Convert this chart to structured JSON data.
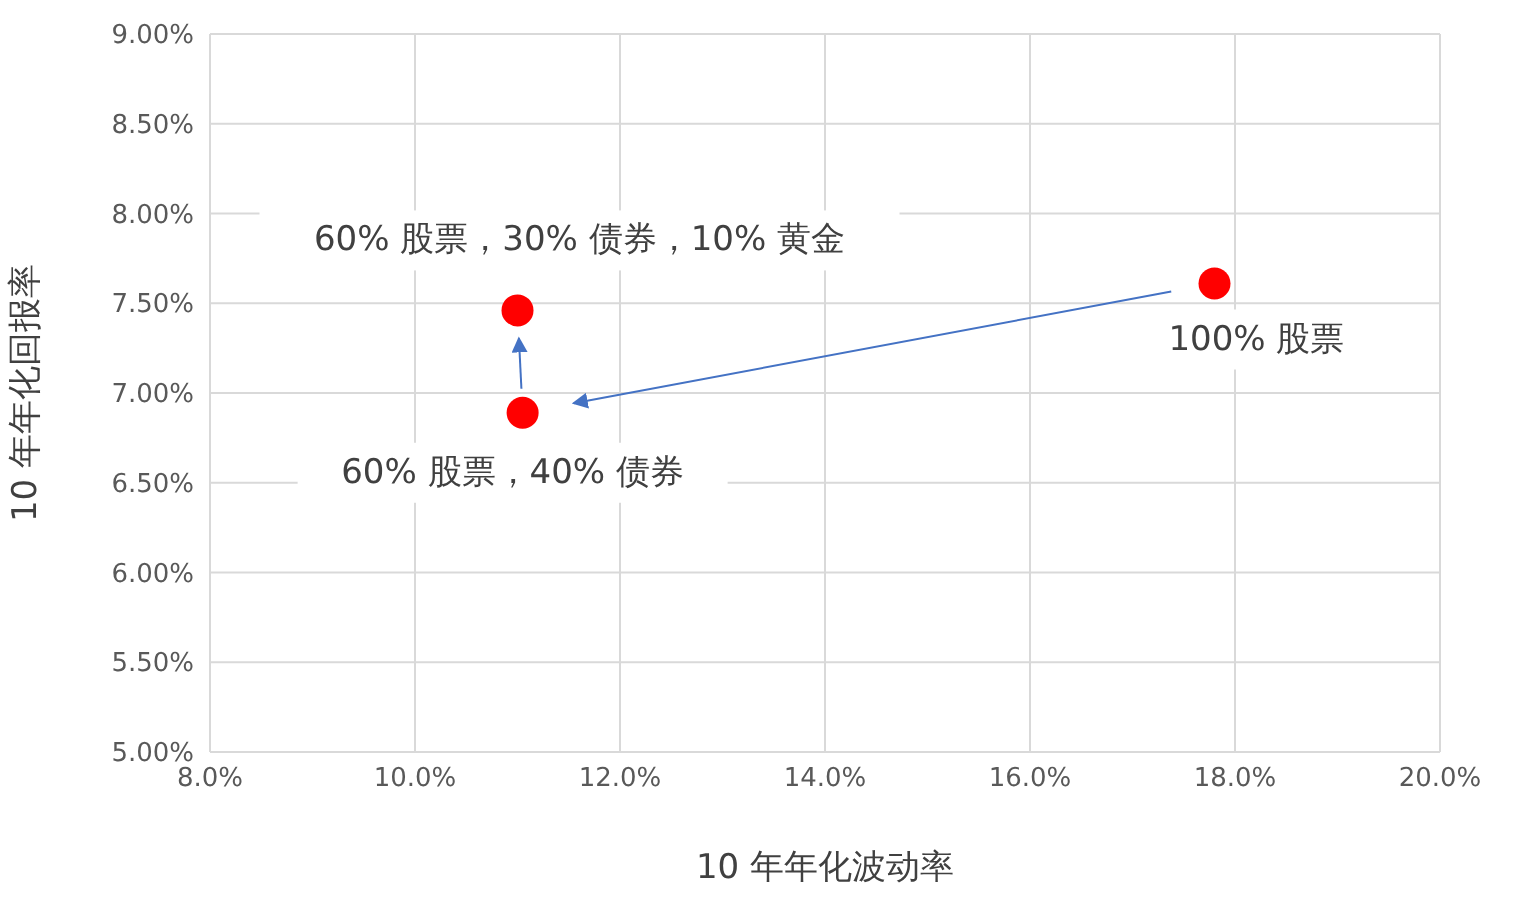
{
  "chart_data": {
    "type": "scatter",
    "xlabel": "10 年年化波动率",
    "ylabel": "10 年年化回报率",
    "x": [
      11.0,
      11.05,
      17.8
    ],
    "series": [
      {
        "color": "#ff0000",
        "values": [
          7.46,
          6.89,
          7.61
        ]
      }
    ],
    "xlim": [
      8,
      20
    ],
    "xticks": [
      {
        "value": 8,
        "label": "8.0%"
      },
      {
        "value": 10,
        "label": "10.0%"
      },
      {
        "value": 12,
        "label": "12.0%"
      },
      {
        "value": 14,
        "label": "14.0%"
      },
      {
        "value": 16,
        "label": "16.0%"
      },
      {
        "value": 18,
        "label": "18.0%"
      },
      {
        "value": 20,
        "label": "20.0%"
      }
    ],
    "ylim": [
      5,
      9
    ],
    "yticks": [
      {
        "value": 5,
        "label": "5.00%"
      },
      {
        "value": 5.5,
        "label": "5.50%"
      },
      {
        "value": 6,
        "label": "6.00%"
      },
      {
        "value": 6.5,
        "label": "6.50%"
      },
      {
        "value": 7,
        "label": "7.00%"
      },
      {
        "value": 7.5,
        "label": "7.50%"
      },
      {
        "value": 8,
        "label": "8.00%"
      },
      {
        "value": 8.5,
        "label": "8.50%"
      },
      {
        "value": 9,
        "label": "9.00%"
      }
    ],
    "grid": true,
    "legend": false,
    "marker": "circle",
    "annotations": [
      {
        "text": "60% 股票，30% 债券，10% 黄金",
        "x": 11.0,
        "y": 7.46
      },
      {
        "text": "60% 股票，40% 债券",
        "x": 11.05,
        "y": 6.89
      },
      {
        "text": "100% 股票",
        "x": 17.8,
        "y": 7.61
      }
    ]
  }
}
